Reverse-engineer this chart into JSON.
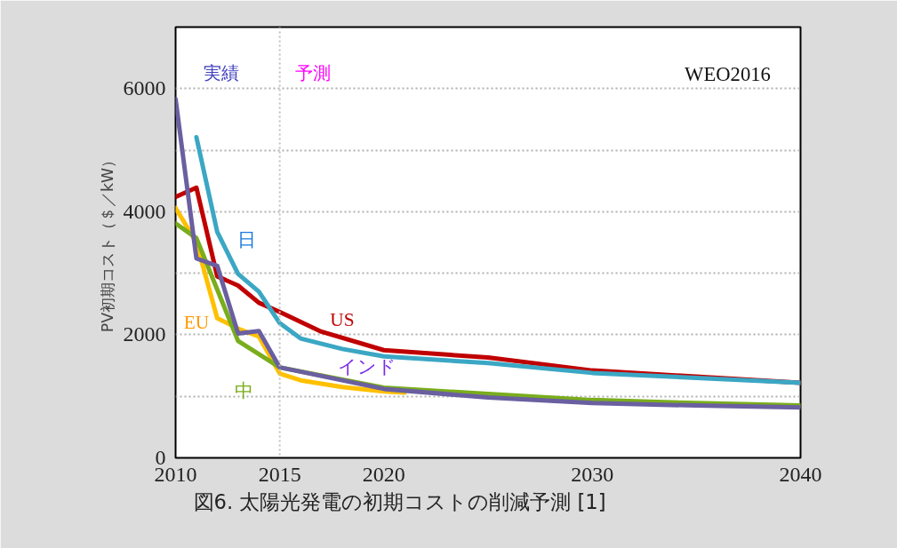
{
  "chart_data": {
    "type": "line",
    "ylabel": "PV初期コスト（＄／kW）",
    "xlim": [
      2010,
      2040
    ],
    "ylim": [
      0,
      7000
    ],
    "xticks": [
      2010,
      2015,
      2020,
      2030,
      2040
    ],
    "yticks": [
      0,
      {
        "value": 1000,
        "label": null
      },
      2000,
      {
        "value": 3000,
        "label": null
      },
      4000,
      {
        "value": 5000,
        "label": null
      },
      6000
    ],
    "grid": "y",
    "line_style": "solid",
    "ref_lines": [
      {
        "axis": "x",
        "value": 2015,
        "label": null,
        "color": "#c0c0c0",
        "line_style": "dotted"
      }
    ],
    "annotations": [
      "実績",
      "予測",
      "WEO2016",
      "図6. 太陽光発電の初期コストの削減予測  [1]"
    ],
    "series": [
      {
        "name": "EU",
        "color": "#ffc000",
        "x": [
          2010,
          2011,
          2012,
          2013,
          2014,
          2015,
          2016,
          2018,
          2020,
          2021
        ],
        "values": [
          4060,
          3500,
          2270,
          2100,
          1970,
          1370,
          1260,
          1150,
          1080,
          1060
        ]
      },
      {
        "name": "中",
        "color": "#7aad1c",
        "x": [
          2010,
          2011,
          2013,
          2015,
          2020,
          2025,
          2030,
          2035,
          2040
        ],
        "values": [
          3810,
          3570,
          1900,
          1470,
          1140,
          1040,
          940,
          890,
          850
        ]
      },
      {
        "name": "US",
        "color": "#c00000",
        "x": [
          2010,
          2011,
          2012,
          2013,
          2014,
          2015,
          2017,
          2020,
          2025,
          2030,
          2040
        ],
        "values": [
          4240,
          4390,
          2950,
          2800,
          2520,
          2370,
          2050,
          1750,
          1630,
          1420,
          1220
        ]
      },
      {
        "name": "日",
        "color": "#3ba7c4",
        "x": [
          2011,
          2012,
          2013,
          2014,
          2015,
          2016,
          2018,
          2020,
          2025,
          2030,
          2035,
          2040
        ],
        "values": [
          5210,
          3670,
          2990,
          2700,
          2190,
          1940,
          1770,
          1650,
          1540,
          1380,
          1300,
          1220
        ]
      },
      {
        "name": "インド",
        "color": "#6a5fa0",
        "x": [
          2010,
          2011,
          2012,
          2013,
          2014,
          2015,
          2020,
          2025,
          2030,
          2035,
          2040
        ],
        "values": [
          5830,
          3240,
          3120,
          2020,
          2060,
          1470,
          1120,
          980,
          890,
          850,
          820
        ]
      }
    ]
  }
}
